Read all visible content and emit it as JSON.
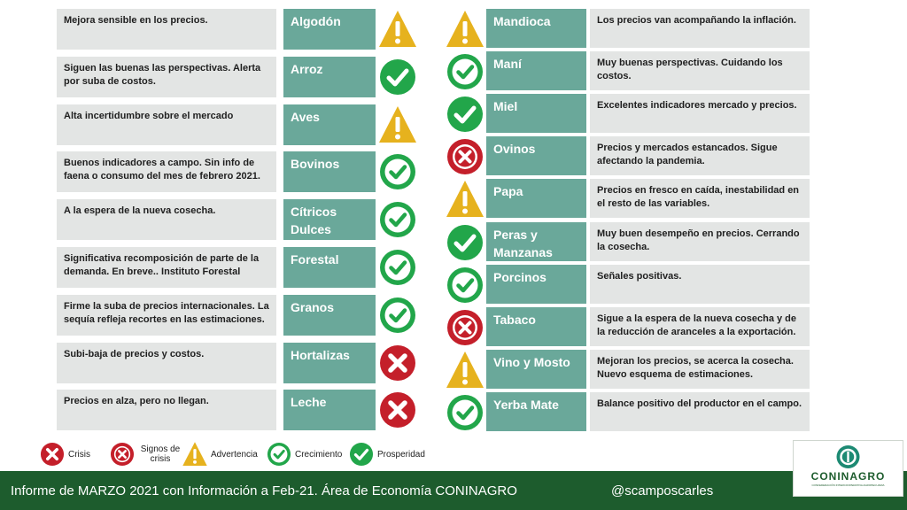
{
  "left": [
    {
      "name": "Algodón",
      "desc": "Mejora sensible en los precios.",
      "status": "advertencia"
    },
    {
      "name": "Arroz",
      "desc": "Siguen las buenas las perspectivas. Alerta por suba de costos.",
      "status": "prosperidad"
    },
    {
      "name": "Aves",
      "desc": "Alta incertidumbre sobre el mercado",
      "status": "advertencia"
    },
    {
      "name": "Bovinos",
      "desc": "Buenos indicadores a campo. Sin info de faena o consumo del mes de febrero 2021.",
      "status": "crecimiento"
    },
    {
      "name": "Cítricos Dulces",
      "desc": "A la espera de la nueva cosecha.",
      "status": "crecimiento"
    },
    {
      "name": "Forestal",
      "desc": "Significativa recomposición de parte de la demanda. En breve.. Instituto Forestal",
      "status": "crecimiento"
    },
    {
      "name": "Granos",
      "desc": "Firme la suba de precios internacionales. La sequía refleja recortes en las estimaciones.",
      "status": "crecimiento"
    },
    {
      "name": "Hortalizas",
      "desc": "Subi-baja de precios y costos.",
      "status": "crisis"
    },
    {
      "name": "Leche",
      "desc": "Precios en alza, pero no llegan.",
      "status": "crisis"
    }
  ],
  "right": [
    {
      "name": "Mandioca",
      "desc": "Los precios van acompañando la inflación.",
      "status": "advertencia"
    },
    {
      "name": "Maní",
      "desc": "Muy buenas perspectivas. Cuidando los costos.",
      "status": "crecimiento"
    },
    {
      "name": "Miel",
      "desc": "Excelentes indicadores mercado y precios.",
      "status": "prosperidad"
    },
    {
      "name": "Ovinos",
      "desc": "Precios y mercados estancados. Sigue afectando la pandemia.",
      "status": "signos"
    },
    {
      "name": "Papa",
      "desc": "Precios en fresco en caída, inestabilidad en el resto de las variables.",
      "status": "advertencia"
    },
    {
      "name": "Peras y Manzanas",
      "desc": "Muy buen desempeño en precios. Cerrando la cosecha.",
      "status": "prosperidad"
    },
    {
      "name": "Porcinos",
      "desc": "Señales positivas.",
      "status": "crecimiento"
    },
    {
      "name": "Tabaco",
      "desc": "Sigue a la espera de la nueva cosecha y de la reducción de aranceles a la exportación.",
      "status": "signos"
    },
    {
      "name": "Vino y Mosto",
      "desc": "Mejoran los precios, se acerca la cosecha. Nuevo esquema de estimaciones.",
      "status": "advertencia"
    },
    {
      "name": "Yerba Mate",
      "desc": "Balance positivo del productor en el campo.",
      "status": "crecimiento"
    }
  ],
  "legend": [
    {
      "label": "Crisis",
      "status": "crisis"
    },
    {
      "label": "Signos de crisis",
      "status": "signos"
    },
    {
      "label": "Advertencia",
      "status": "advertencia"
    },
    {
      "label": "Crecimiento",
      "status": "crecimiento"
    },
    {
      "label": "Prosperidad",
      "status": "prosperidad"
    }
  ],
  "footer": {
    "text": "Informe de MARZO 2021 con Información a Feb-21. Área de Economía CONINAGRO",
    "handle": "@scamposcarles"
  },
  "logo": {
    "name": "CONINAGRO",
    "subtitle": "CONFEDERACIÓN INTERCOOPERATIVA AGROPECUARIA"
  },
  "colors": {
    "crisis": "#c41f2a",
    "warning": "#e6b21e",
    "growth": "#22a64a",
    "name_cell": "#6aa89a",
    "desc_cell": "#e3e5e4",
    "footer": "#1d5c2d"
  }
}
